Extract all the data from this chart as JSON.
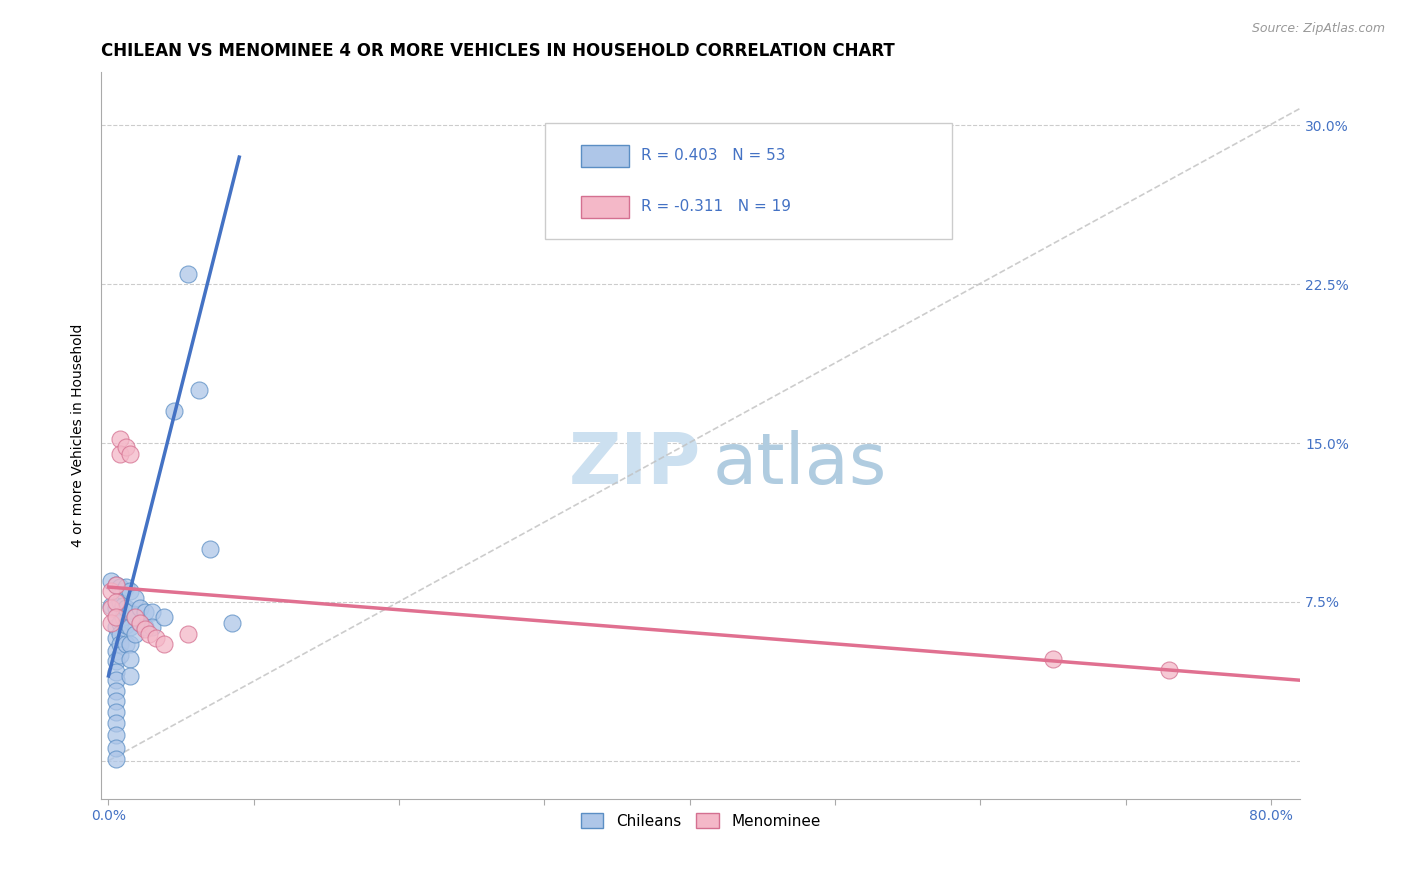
{
  "title": "CHILEAN VS MENOMINEE 4 OR MORE VEHICLES IN HOUSEHOLD CORRELATION CHART",
  "source": "Source: ZipAtlas.com",
  "ylabel": "4 or more Vehicles in Household",
  "xlim": [
    -0.005,
    0.82
  ],
  "ylim": [
    -0.018,
    0.325
  ],
  "xticks": [
    0.0,
    0.1,
    0.2,
    0.3,
    0.4,
    0.5,
    0.6,
    0.7,
    0.8
  ],
  "xticklabels": [
    "0.0%",
    "",
    "",
    "",
    "",
    "",
    "",
    "",
    "80.0%"
  ],
  "yticks": [
    0.0,
    0.075,
    0.15,
    0.225,
    0.3
  ],
  "yticklabels": [
    "",
    "7.5%",
    "15.0%",
    "22.5%",
    "30.0%"
  ],
  "chilean_R": 0.403,
  "chilean_N": 53,
  "menominee_R": -0.311,
  "menominee_N": 19,
  "chilean_color": "#aec6e8",
  "chilean_edge_color": "#5b8ec4",
  "menominee_color": "#f4b8c8",
  "menominee_edge_color": "#d47090",
  "chilean_line_color": "#4472c4",
  "menominee_line_color": "#e07090",
  "diag_line_color": "#c0c0c0",
  "watermark_zip_color": "#cce0f0",
  "watermark_atlas_color": "#b0cce0",
  "title_fontsize": 12,
  "axis_label_fontsize": 10,
  "tick_fontsize": 10,
  "legend_fontsize": 11,
  "source_fontsize": 9,
  "chilean_scatter": [
    [
      0.002,
      0.085
    ],
    [
      0.002,
      0.073
    ],
    [
      0.005,
      0.083
    ],
    [
      0.005,
      0.072
    ],
    [
      0.005,
      0.068
    ],
    [
      0.005,
      0.063
    ],
    [
      0.005,
      0.058
    ],
    [
      0.005,
      0.052
    ],
    [
      0.005,
      0.047
    ],
    [
      0.005,
      0.042
    ],
    [
      0.005,
      0.038
    ],
    [
      0.005,
      0.033
    ],
    [
      0.005,
      0.028
    ],
    [
      0.005,
      0.023
    ],
    [
      0.005,
      0.018
    ],
    [
      0.005,
      0.012
    ],
    [
      0.005,
      0.006
    ],
    [
      0.005,
      0.001
    ],
    [
      0.008,
      0.082
    ],
    [
      0.008,
      0.075
    ],
    [
      0.008,
      0.07
    ],
    [
      0.008,
      0.065
    ],
    [
      0.008,
      0.06
    ],
    [
      0.008,
      0.055
    ],
    [
      0.008,
      0.05
    ],
    [
      0.01,
      0.08
    ],
    [
      0.01,
      0.073
    ],
    [
      0.01,
      0.068
    ],
    [
      0.012,
      0.082
    ],
    [
      0.012,
      0.072
    ],
    [
      0.012,
      0.064
    ],
    [
      0.012,
      0.055
    ],
    [
      0.015,
      0.08
    ],
    [
      0.015,
      0.07
    ],
    [
      0.015,
      0.063
    ],
    [
      0.015,
      0.055
    ],
    [
      0.015,
      0.048
    ],
    [
      0.015,
      0.04
    ],
    [
      0.018,
      0.077
    ],
    [
      0.018,
      0.068
    ],
    [
      0.018,
      0.06
    ],
    [
      0.022,
      0.072
    ],
    [
      0.022,
      0.065
    ],
    [
      0.025,
      0.07
    ],
    [
      0.025,
      0.063
    ],
    [
      0.03,
      0.07
    ],
    [
      0.03,
      0.063
    ],
    [
      0.038,
      0.068
    ],
    [
      0.045,
      0.165
    ],
    [
      0.055,
      0.23
    ],
    [
      0.062,
      0.175
    ],
    [
      0.07,
      0.1
    ],
    [
      0.085,
      0.065
    ]
  ],
  "menominee_scatter": [
    [
      0.002,
      0.08
    ],
    [
      0.002,
      0.072
    ],
    [
      0.002,
      0.065
    ],
    [
      0.005,
      0.083
    ],
    [
      0.005,
      0.075
    ],
    [
      0.005,
      0.068
    ],
    [
      0.008,
      0.152
    ],
    [
      0.008,
      0.145
    ],
    [
      0.012,
      0.148
    ],
    [
      0.015,
      0.145
    ],
    [
      0.018,
      0.068
    ],
    [
      0.022,
      0.065
    ],
    [
      0.025,
      0.062
    ],
    [
      0.028,
      0.06
    ],
    [
      0.033,
      0.058
    ],
    [
      0.038,
      0.055
    ],
    [
      0.055,
      0.06
    ],
    [
      0.65,
      0.048
    ],
    [
      0.73,
      0.043
    ]
  ],
  "chilean_line_x": [
    0.0,
    0.09
  ],
  "chilean_line_y_start": 0.04,
  "chilean_line_y_end": 0.285,
  "menominee_line_x": [
    0.0,
    0.82
  ],
  "menominee_line_y_start": 0.082,
  "menominee_line_y_end": 0.038,
  "diag_line_x": [
    0.0,
    0.82
  ],
  "diag_line_y_start": 0.0,
  "diag_line_y_end": 0.308
}
